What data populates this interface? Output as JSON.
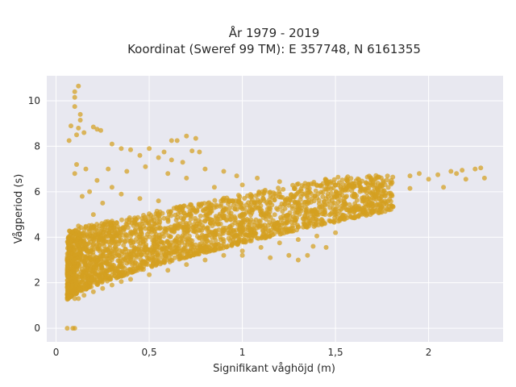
{
  "chart_data": {
    "type": "scatter",
    "title_line1": "År 1979 - 2019",
    "title_line2": "Koordinat (Sweref 99 TM): E 357748, N 6161355",
    "xlabel": "Signifikant våghöjd (m)",
    "ylabel": "Vågperiod (s)",
    "xlim": [
      -0.05,
      2.4
    ],
    "ylim": [
      -0.6,
      11.1
    ],
    "x_ticks": [
      0,
      0.5,
      1,
      1.5,
      2
    ],
    "x_tick_labels": [
      "0",
      "0,5",
      "1",
      "1,5",
      "2"
    ],
    "y_ticks": [
      0,
      2,
      4,
      6,
      8,
      10
    ],
    "y_tick_labels": [
      "0",
      "2",
      "4",
      "6",
      "8",
      "10"
    ],
    "grid": true,
    "legend": "none",
    "point_color": "#d4a020",
    "plot_background": "#e8e8f0",
    "points": [
      [
        0.06,
        0.0
      ],
      [
        0.09,
        0.0
      ],
      [
        0.1,
        0.0
      ],
      [
        0.12,
        10.65
      ],
      [
        0.1,
        10.4
      ],
      [
        0.1,
        10.15
      ],
      [
        0.1,
        9.75
      ],
      [
        0.13,
        9.4
      ],
      [
        0.13,
        9.15
      ],
      [
        0.08,
        8.9
      ],
      [
        0.12,
        8.8
      ],
      [
        0.2,
        8.85
      ],
      [
        0.22,
        8.75
      ],
      [
        0.24,
        8.7
      ],
      [
        0.07,
        8.25
      ],
      [
        0.11,
        8.5
      ],
      [
        0.15,
        8.6
      ],
      [
        0.3,
        8.1
      ],
      [
        0.35,
        7.9
      ],
      [
        0.4,
        7.85
      ],
      [
        0.5,
        7.9
      ],
      [
        0.62,
        8.25
      ],
      [
        0.65,
        8.25
      ],
      [
        0.7,
        8.45
      ],
      [
        0.75,
        8.35
      ],
      [
        0.73,
        7.8
      ],
      [
        0.77,
        7.75
      ],
      [
        0.58,
        7.75
      ],
      [
        0.45,
        7.6
      ],
      [
        0.55,
        7.5
      ],
      [
        0.62,
        7.4
      ],
      [
        0.68,
        7.3
      ],
      [
        0.8,
        7.0
      ],
      [
        0.9,
        6.9
      ],
      [
        0.97,
        6.7
      ],
      [
        1.08,
        6.6
      ],
      [
        1.2,
        6.45
      ],
      [
        1.3,
        6.35
      ],
      [
        1.4,
        6.3
      ],
      [
        1.5,
        6.3
      ],
      [
        1.6,
        6.35
      ],
      [
        1.7,
        6.45
      ],
      [
        1.8,
        6.5
      ],
      [
        1.9,
        6.7
      ],
      [
        1.95,
        6.8
      ],
      [
        2.05,
        6.75
      ],
      [
        2.12,
        6.9
      ],
      [
        2.18,
        6.95
      ],
      [
        2.25,
        7.0
      ],
      [
        2.28,
        7.05
      ],
      [
        2.3,
        6.6
      ],
      [
        2.2,
        6.55
      ],
      [
        2.15,
        6.8
      ],
      [
        2.0,
        6.55
      ],
      [
        2.08,
        6.2
      ],
      [
        1.9,
        6.15
      ],
      [
        1.75,
        6.05
      ],
      [
        1.6,
        5.85
      ],
      [
        1.45,
        5.7
      ],
      [
        1.3,
        5.5
      ],
      [
        1.15,
        5.25
      ],
      [
        1.0,
        5.0
      ],
      [
        0.9,
        4.85
      ],
      [
        0.8,
        4.7
      ],
      [
        0.7,
        4.55
      ],
      [
        0.6,
        4.4
      ],
      [
        0.5,
        4.25
      ],
      [
        0.4,
        4.05
      ],
      [
        0.3,
        3.9
      ],
      [
        0.2,
        3.7
      ],
      [
        0.15,
        3.5
      ],
      [
        0.12,
        3.3
      ],
      [
        0.1,
        3.0
      ],
      [
        0.09,
        2.6
      ],
      [
        0.08,
        2.2
      ],
      [
        0.07,
        1.8
      ],
      [
        0.06,
        1.5
      ],
      [
        0.07,
        1.4
      ],
      [
        0.1,
        1.3
      ],
      [
        0.12,
        1.3
      ],
      [
        0.15,
        1.45
      ],
      [
        0.2,
        1.6
      ],
      [
        0.25,
        1.75
      ],
      [
        0.3,
        1.9
      ],
      [
        0.35,
        2.05
      ],
      [
        0.4,
        2.15
      ],
      [
        0.5,
        2.35
      ],
      [
        0.6,
        2.55
      ],
      [
        0.7,
        2.8
      ],
      [
        0.8,
        3.0
      ],
      [
        0.9,
        3.2
      ],
      [
        1.0,
        3.4
      ],
      [
        1.1,
        3.55
      ],
      [
        1.2,
        3.75
      ],
      [
        1.3,
        3.9
      ],
      [
        1.4,
        4.05
      ],
      [
        1.5,
        4.2
      ],
      [
        1.38,
        3.6
      ],
      [
        1.45,
        3.55
      ],
      [
        1.35,
        3.2
      ],
      [
        1.3,
        3.0
      ],
      [
        1.25,
        3.2
      ],
      [
        1.15,
        3.1
      ],
      [
        1.0,
        3.2
      ],
      [
        0.55,
        3.0
      ],
      [
        0.35,
        2.7
      ],
      [
        0.25,
        2.4
      ],
      [
        0.18,
        2.2
      ],
      [
        0.13,
        1.9
      ],
      [
        0.2,
        5.0
      ],
      [
        0.25,
        5.5
      ],
      [
        0.18,
        6.0
      ],
      [
        0.22,
        6.5
      ],
      [
        0.3,
        6.2
      ],
      [
        0.35,
        5.9
      ],
      [
        0.45,
        5.7
      ],
      [
        0.55,
        5.6
      ],
      [
        0.65,
        5.3
      ],
      [
        0.75,
        5.1
      ],
      [
        0.85,
        5.3
      ],
      [
        0.95,
        5.6
      ],
      [
        1.05,
        5.8
      ],
      [
        1.12,
        6.0
      ],
      [
        1.2,
        5.9
      ],
      [
        1.35,
        5.95
      ],
      [
        1.25,
        5.4
      ],
      [
        1.1,
        5.0
      ],
      [
        0.95,
        4.3
      ],
      [
        0.8,
        4.0
      ],
      [
        0.65,
        3.8
      ],
      [
        0.45,
        3.4
      ],
      [
        0.3,
        3.1
      ],
      [
        0.12,
        4.5
      ],
      [
        0.14,
        5.8
      ],
      [
        0.1,
        6.8
      ],
      [
        0.11,
        7.2
      ],
      [
        0.16,
        7.0
      ],
      [
        0.28,
        7.0
      ],
      [
        0.38,
        6.9
      ],
      [
        0.48,
        7.1
      ],
      [
        0.6,
        6.8
      ],
      [
        0.7,
        6.6
      ],
      [
        0.85,
        6.2
      ],
      [
        1.0,
        6.3
      ],
      [
        1.55,
        5.3
      ],
      [
        1.65,
        5.6
      ],
      [
        1.7,
        6.0
      ]
    ]
  }
}
